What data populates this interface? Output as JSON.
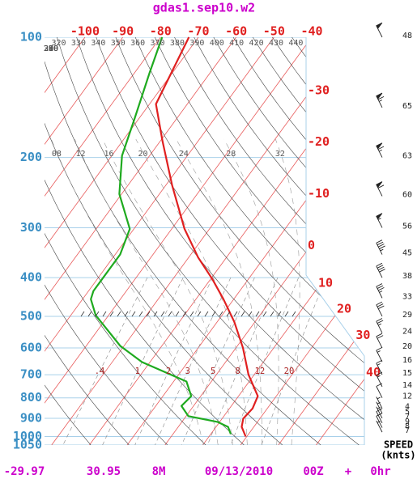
{
  "chart_data": {
    "type": "skew-t",
    "title": "gdas1.sep10.w2",
    "ylim": [
      100,
      1050
    ],
    "yticks": [
      100,
      200,
      300,
      400,
      500,
      600,
      700,
      800,
      900,
      1000,
      1050
    ],
    "log_y": true,
    "xlim": [
      -110.7,
      -41.5
    ],
    "xticks": [
      -100,
      -90,
      -80,
      -70,
      -60,
      -50,
      -40,
      -30,
      -20,
      -10,
      0,
      10,
      20,
      30,
      40
    ],
    "theta_ticks": [
      250,
      260,
      270,
      280,
      290,
      300,
      310,
      320,
      330,
      340,
      350,
      360,
      370,
      380,
      390,
      400,
      410,
      420,
      430,
      440
    ],
    "moist_ticks": [
      {
        "value": 8,
        "label": "08"
      },
      12,
      16,
      20,
      24,
      28,
      32
    ],
    "mixing_ratio_ticks": [
      {
        "value": 0.4,
        "label": ".4"
      },
      1,
      2,
      3,
      5,
      8,
      12,
      20
    ],
    "series": [
      {
        "color": "#e02020",
        "pressure": [
          100,
          147,
          182,
          235,
          302,
          356,
          403,
          453,
          516,
          599,
          700,
          792,
          850,
          902,
          946,
          1000
        ],
        "values": [
          -72.5,
          -68.3,
          -59.4,
          -48.3,
          -36.6,
          -27.5,
          -19.6,
          -12.7,
          -5.5,
          1.8,
          8.5,
          15.1,
          16.1,
          15.6,
          16.8,
          19.7
        ]
      },
      {
        "color": "#1faa1f",
        "pressure": [
          100,
          123,
          162,
          198,
          247,
          302,
          350,
          432,
          453,
          497,
          593,
          651,
          728,
          792,
          838,
          889,
          919,
          946,
          986
        ],
        "values": [
          -79.6,
          -76.0,
          -70.9,
          -67.3,
          -60.6,
          -51.1,
          -48.7,
          -48.7,
          -47.8,
          -43.4,
          -31.0,
          -22.1,
          -6.6,
          -2.5,
          -3.2,
          0.6,
          9.4,
          13.2,
          15.3
        ]
      }
    ],
    "wind": {
      "pressure": [
        100,
        150,
        200,
        250,
        300,
        350,
        400,
        450,
        500,
        550,
        600,
        650,
        700,
        750,
        800,
        850,
        875,
        900,
        925,
        950,
        975
      ],
      "speed": [
        48,
        65,
        63,
        60,
        56,
        45,
        38,
        33,
        29,
        24,
        20,
        16,
        15,
        14,
        12,
        4,
        5,
        7,
        9,
        8,
        7
      ]
    },
    "speed_label": "SPEED",
    "speed_unit": "(knts)",
    "footer": [
      -29.97,
      30.95,
      "8M",
      "09/13/2010",
      "00Z",
      "+",
      "0hr"
    ]
  }
}
